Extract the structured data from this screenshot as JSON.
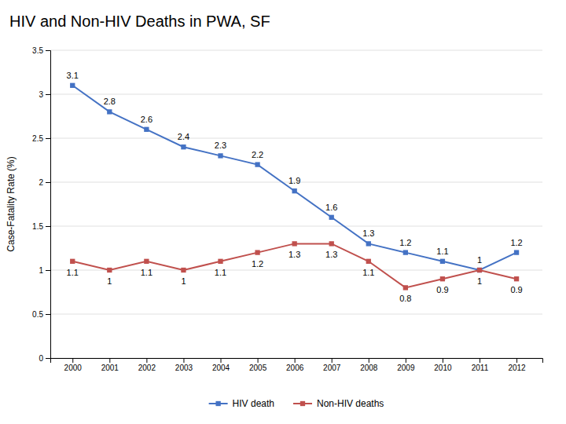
{
  "chart_data": {
    "type": "line",
    "title": "HIV and Non-HIV Deaths in PWA, SF",
    "ylabel": "Case-Fatality Rate (%)",
    "x": [
      2000,
      2001,
      2002,
      2003,
      2004,
      2005,
      2006,
      2007,
      2008,
      2009,
      2010,
      2011,
      2012
    ],
    "xlim": [
      1999.4,
      2012.7
    ],
    "xticks": [
      2000,
      2001,
      2002,
      2003,
      2004,
      2005,
      2006,
      2007,
      2008,
      2009,
      2010,
      2011,
      2012
    ],
    "ylim": [
      0,
      3.5
    ],
    "yticks": [
      0,
      0.5,
      1,
      1.5,
      2,
      2.5,
      3,
      3.5
    ],
    "grid": true,
    "legend": "bottom",
    "data_labels": true,
    "series": [
      {
        "name": "HIV death",
        "color": "#4472C4",
        "marker": "square",
        "line_style": "solid",
        "values": [
          3.1,
          2.8,
          2.6,
          2.4,
          2.3,
          2.2,
          1.9,
          1.6,
          1.3,
          1.2,
          1.1,
          1.0,
          1.2
        ]
      },
      {
        "name": "Non-HIV deaths",
        "color": "#C0504D",
        "marker": "square",
        "line_style": "solid",
        "values": [
          1.1,
          1.0,
          1.1,
          1.0,
          1.1,
          1.2,
          1.3,
          1.3,
          1.1,
          0.8,
          0.9,
          1.0,
          0.9
        ]
      }
    ]
  }
}
